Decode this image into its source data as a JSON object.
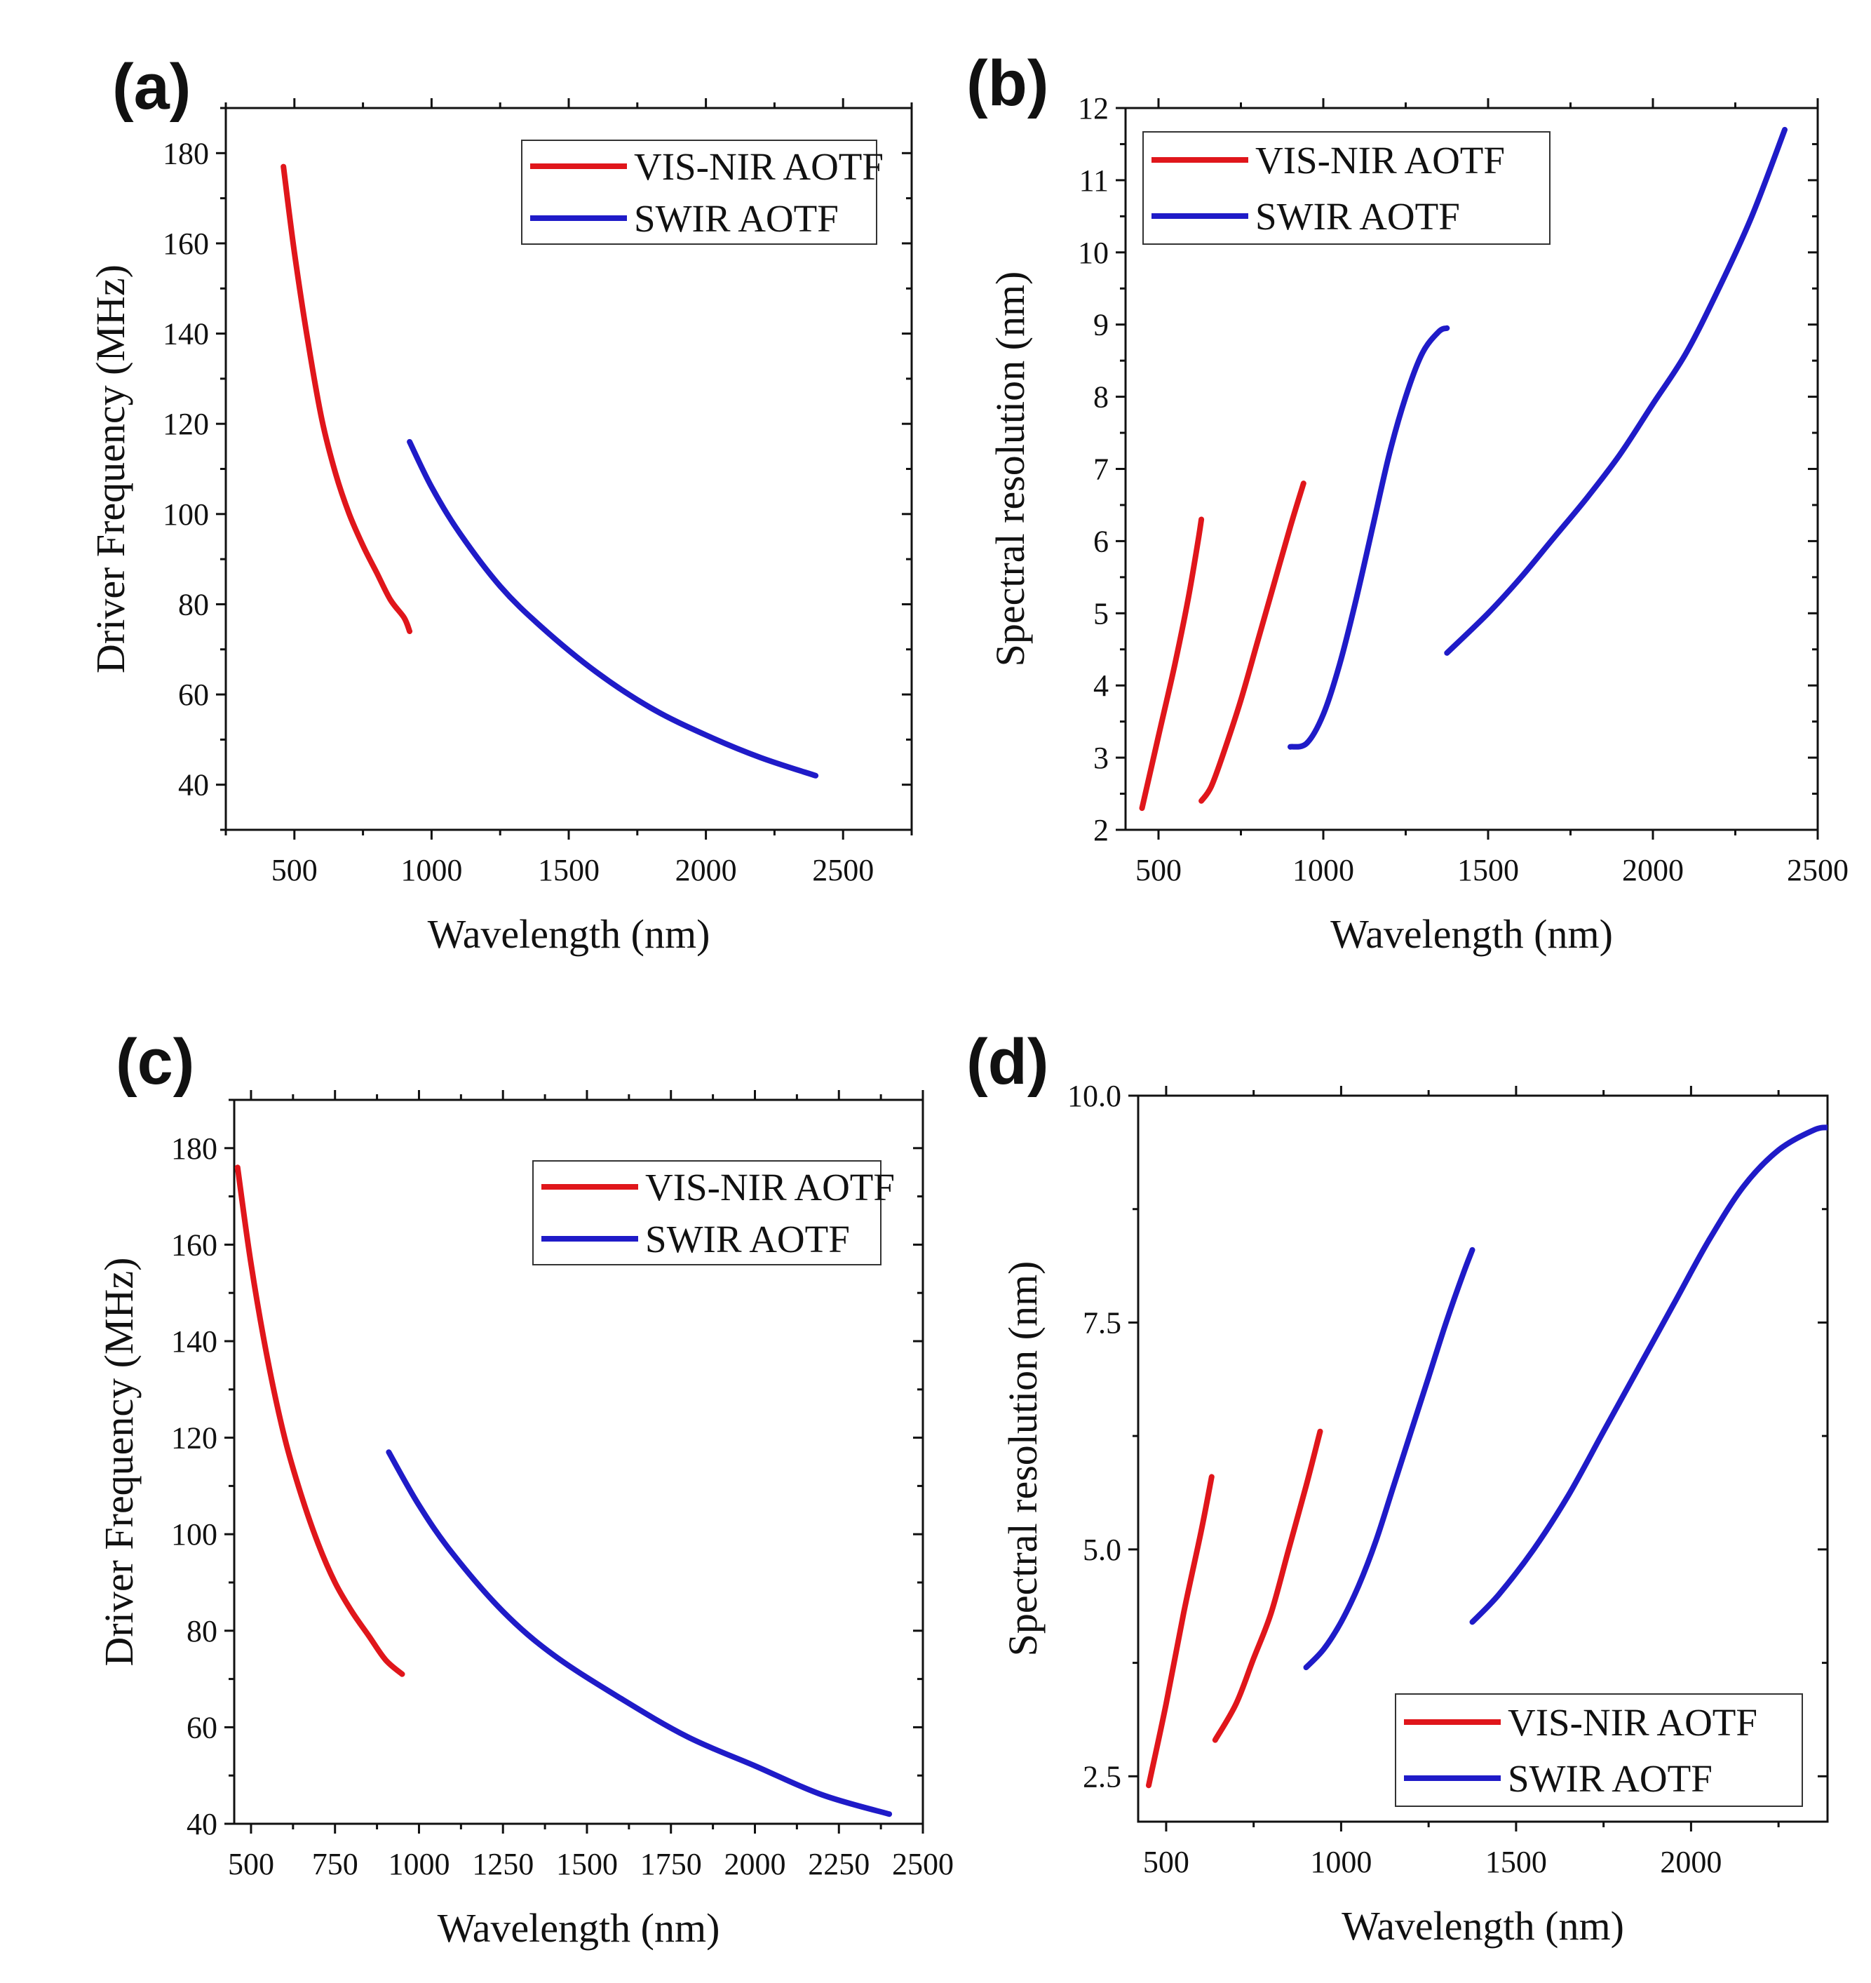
{
  "colors": {
    "red": "#e0161b",
    "blue": "#1f1bc8"
  },
  "chart_data": [
    {
      "id": "a",
      "panel_label": "(a)",
      "type": "line",
      "xlabel": "Wavelength (nm)",
      "ylabel": "Driver Frequency (MHz)",
      "xlim": [
        250,
        2750
      ],
      "ylim": [
        30,
        190
      ],
      "xticks": [
        500,
        1000,
        1500,
        2000,
        2500
      ],
      "xtick_labels": [
        "500",
        "1000",
        "1500",
        "2000",
        "2500"
      ],
      "yticks": [
        40,
        60,
        80,
        100,
        120,
        140,
        160,
        180
      ],
      "ytick_labels": [
        "40",
        "60",
        "80",
        "100",
        "120",
        "140",
        "160",
        "180"
      ],
      "legend_position": "top-right",
      "legend_entries": [
        "VIS-NIR AOTF",
        "SWIR AOTF"
      ],
      "series": [
        {
          "name": "VIS-NIR AOTF",
          "color": "red",
          "segments": [
            {
              "x": [
                460,
                500,
                550,
                600,
                650,
                700,
                750,
                800,
                850,
                900,
                920
              ],
              "y": [
                177,
                158,
                138,
                121,
                109,
                100,
                93,
                87,
                81,
                77,
                74
              ]
            }
          ]
        },
        {
          "name": "SWIR AOTF",
          "color": "blue",
          "segments": [
            {
              "x": [
                920,
                1000,
                1100,
                1250,
                1400,
                1600,
                1800,
                2000,
                2200,
                2400
              ],
              "y": [
                116,
                106,
                96,
                84,
                75,
                65,
                57,
                51,
                46,
                42
              ]
            }
          ]
        }
      ]
    },
    {
      "id": "b",
      "panel_label": "(b)",
      "type": "line",
      "xlabel": "Wavelength (nm)",
      "ylabel": "Spectral resolution (nm)",
      "xlim": [
        400,
        2500
      ],
      "ylim": [
        2,
        12
      ],
      "xticks": [
        500,
        1000,
        1500,
        2000,
        2500
      ],
      "xtick_labels": [
        "500",
        "1000",
        "1500",
        "2000",
        "2500"
      ],
      "yticks": [
        2,
        3,
        4,
        5,
        6,
        7,
        8,
        9,
        10,
        11,
        12
      ],
      "ytick_labels": [
        "2",
        "3",
        "4",
        "5",
        "6",
        "7",
        "8",
        "9",
        "10",
        "11",
        "12"
      ],
      "legend_position": "top-left",
      "legend_entries": [
        "VIS-NIR AOTF",
        "SWIR AOTF"
      ],
      "series": [
        {
          "name": "VIS-NIR AOTF",
          "color": "red",
          "segments": [
            {
              "x": [
                450,
                500,
                550,
                590,
                620,
                630
              ],
              "y": [
                2.3,
                3.3,
                4.3,
                5.2,
                6.0,
                6.3
              ]
            },
            {
              "x": [
                630,
                660,
                700,
                750,
                800,
                850,
                900,
                940
              ],
              "y": [
                2.4,
                2.6,
                3.1,
                3.8,
                4.6,
                5.4,
                6.2,
                6.8
              ]
            }
          ]
        },
        {
          "name": "SWIR AOTF",
          "color": "blue",
          "segments": [
            {
              "x": [
                900,
                950,
                1000,
                1050,
                1100,
                1150,
                1200,
                1250,
                1300,
                1350,
                1375
              ],
              "y": [
                3.15,
                3.2,
                3.6,
                4.3,
                5.2,
                6.2,
                7.2,
                8.0,
                8.6,
                8.9,
                8.95
              ]
            },
            {
              "x": [
                1375,
                1500,
                1600,
                1700,
                1800,
                1900,
                2000,
                2100,
                2200,
                2300,
                2400
              ],
              "y": [
                4.45,
                5.0,
                5.5,
                6.05,
                6.6,
                7.2,
                7.9,
                8.6,
                9.5,
                10.5,
                11.7
              ]
            }
          ]
        }
      ]
    },
    {
      "id": "c",
      "panel_label": "(c)",
      "type": "line",
      "xlabel": "Wavelength (nm)",
      "ylabel": "Driver Frequency (MHz)",
      "xlim": [
        450,
        2500
      ],
      "ylim": [
        40,
        190
      ],
      "xticks": [
        500,
        750,
        1000,
        1250,
        1500,
        1750,
        2000,
        2250,
        2500
      ],
      "xtick_labels": [
        "500",
        "750",
        "1000",
        "1250",
        "1500",
        "1750",
        "2000",
        "2250",
        "2500"
      ],
      "yticks": [
        40,
        60,
        80,
        100,
        120,
        140,
        160,
        180
      ],
      "ytick_labels": [
        "40",
        "60",
        "80",
        "100",
        "120",
        "140",
        "160",
        "180"
      ],
      "legend_position": "top-right",
      "legend_entries": [
        "VIS-NIR AOTF",
        "SWIR AOTF"
      ],
      "series": [
        {
          "name": "VIS-NIR AOTF",
          "color": "red",
          "segments": [
            {
              "x": [
                460,
                500,
                550,
                600,
                650,
                700,
                750,
                800,
                850,
                900,
                950
              ],
              "y": [
                176,
                156,
                136,
                120,
                108,
                98,
                90,
                84,
                79,
                74,
                71
              ]
            }
          ]
        },
        {
          "name": "SWIR AOTF",
          "color": "blue",
          "segments": [
            {
              "x": [
                910,
                1000,
                1100,
                1250,
                1400,
                1600,
                1800,
                2000,
                2200,
                2400
              ],
              "y": [
                117,
                106,
                96,
                84,
                75,
                66,
                58,
                52,
                46,
                42
              ]
            }
          ]
        }
      ]
    },
    {
      "id": "d",
      "panel_label": "(d)",
      "type": "line",
      "xlabel": "Wavelength (nm)",
      "ylabel": "Spectral resolution (nm)",
      "xlim": [
        420,
        2390
      ],
      "ylim": [
        2.0,
        10.0
      ],
      "xticks": [
        500,
        1000,
        1500,
        2000
      ],
      "xtick_labels": [
        "500",
        "1000",
        "1500",
        "2000"
      ],
      "yticks": [
        2.5,
        5.0,
        7.5,
        10.0
      ],
      "ytick_labels": [
        "2.5",
        "5.0",
        "7.5",
        "10.0"
      ],
      "legend_position": "bottom-right",
      "legend_entries": [
        "VIS-NIR AOTF",
        "SWIR AOTF"
      ],
      "series": [
        {
          "name": "VIS-NIR AOTF",
          "color": "red",
          "segments": [
            {
              "x": [
                450,
                500,
                550,
                600,
                630
              ],
              "y": [
                2.4,
                3.3,
                4.3,
                5.2,
                5.8
              ]
            },
            {
              "x": [
                640,
                700,
                750,
                800,
                850,
                900,
                940
              ],
              "y": [
                2.9,
                3.3,
                3.8,
                4.3,
                5.0,
                5.7,
                6.3
              ]
            }
          ]
        },
        {
          "name": "SWIR AOTF",
          "color": "blue",
          "segments": [
            {
              "x": [
                900,
                950,
                1000,
                1050,
                1100,
                1150,
                1200,
                1250,
                1300,
                1350,
                1375
              ],
              "y": [
                3.7,
                3.9,
                4.2,
                4.6,
                5.1,
                5.7,
                6.3,
                6.9,
                7.5,
                8.05,
                8.3
              ]
            },
            {
              "x": [
                1375,
                1450,
                1550,
                1650,
                1750,
                1850,
                1950,
                2050,
                2150,
                2250,
                2350,
                2390
              ],
              "y": [
                4.2,
                4.5,
                5.0,
                5.6,
                6.3,
                7.0,
                7.7,
                8.4,
                9.0,
                9.4,
                9.62,
                9.65
              ]
            }
          ]
        }
      ]
    }
  ]
}
